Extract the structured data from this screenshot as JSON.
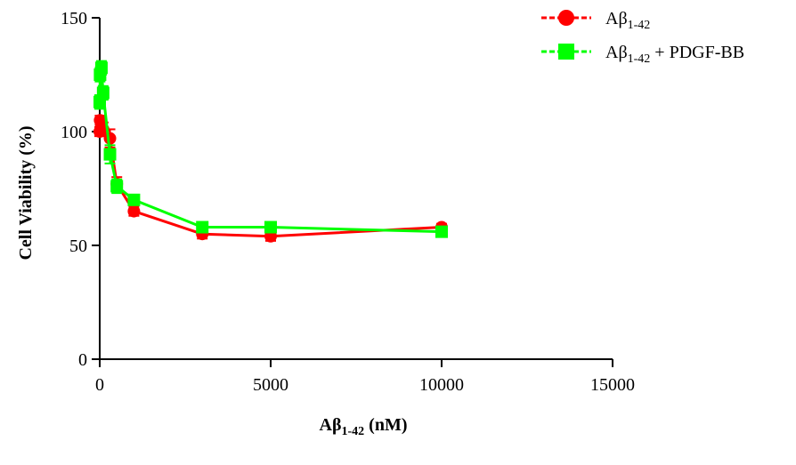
{
  "chart_data": {
    "type": "line",
    "xlabel": {
      "main": "Aβ",
      "sub": "1-42",
      "tail": " (nM)"
    },
    "ylabel": "Cell Viability (%)",
    "xlim": [
      0,
      15000
    ],
    "ylim": [
      0,
      150
    ],
    "x_ticks": [
      0,
      5000,
      10000,
      15000
    ],
    "y_ticks": [
      0,
      50,
      100,
      150
    ],
    "x_tick_labels": [
      "0",
      "5000",
      "10000",
      "15000"
    ],
    "y_tick_labels": [
      "0",
      "50",
      "100",
      "150"
    ],
    "grid": false,
    "legend_position": "top-right",
    "series": [
      {
        "name": "Aβ1-42",
        "legend": {
          "main": "Aβ",
          "sub": "1-42",
          "tail": ""
        },
        "color": "#ff0000",
        "marker": "circle",
        "x": [
          0,
          10,
          50,
          100,
          300,
          500,
          1000,
          3000,
          5000,
          10000
        ],
        "y": [
          100,
          105,
          103,
          101,
          97,
          77,
          65,
          55,
          54,
          58
        ],
        "err": [
          2,
          2,
          3,
          3,
          4,
          3,
          2,
          2,
          2,
          1.5
        ]
      },
      {
        "name": "Aβ1-42 + PDGF-BB",
        "legend": {
          "main": "Aβ",
          "sub": "1-42",
          "tail": " + PDGF-BB"
        },
        "color": "#00ff00",
        "marker": "square",
        "x": [
          0,
          10,
          50,
          100,
          300,
          500,
          1000,
          3000,
          5000,
          10000
        ],
        "y": [
          113,
          125,
          128,
          117,
          90,
          76,
          70,
          58,
          58,
          56
        ],
        "err": [
          3,
          3,
          3,
          3,
          4,
          3,
          2,
          2,
          1.5,
          1.5
        ]
      }
    ]
  }
}
